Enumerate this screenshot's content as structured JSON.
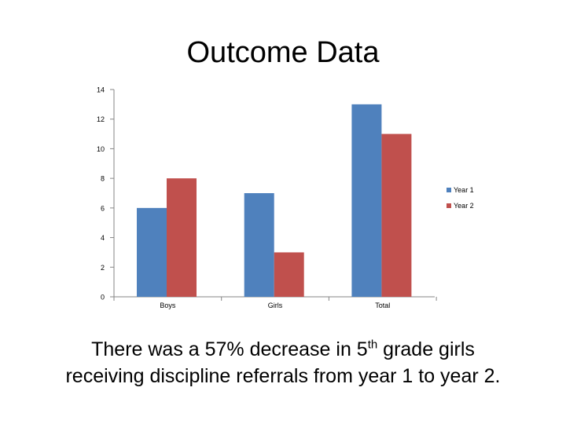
{
  "slide": {
    "title": "Outcome Data",
    "caption": {
      "line1_before": "There was a 57% decrease in 5",
      "line1_superscript": "th",
      "line1_after": " grade girls",
      "line2": "receiving discipline referrals from year 1 to year 2."
    }
  },
  "chart_data": {
    "type": "bar",
    "categories": [
      "Boys",
      "Girls",
      "Total"
    ],
    "series": [
      {
        "name": "Year 1",
        "color": "#4f81bd",
        "values": [
          6,
          7,
          13
        ]
      },
      {
        "name": "Year 2",
        "color": "#c0504d",
        "values": [
          8,
          3,
          11
        ]
      }
    ],
    "ylim": [
      0,
      14
    ],
    "yticks": [
      0,
      2,
      4,
      6,
      8,
      10,
      12,
      14
    ],
    "gridlines": false,
    "legend": "right"
  }
}
